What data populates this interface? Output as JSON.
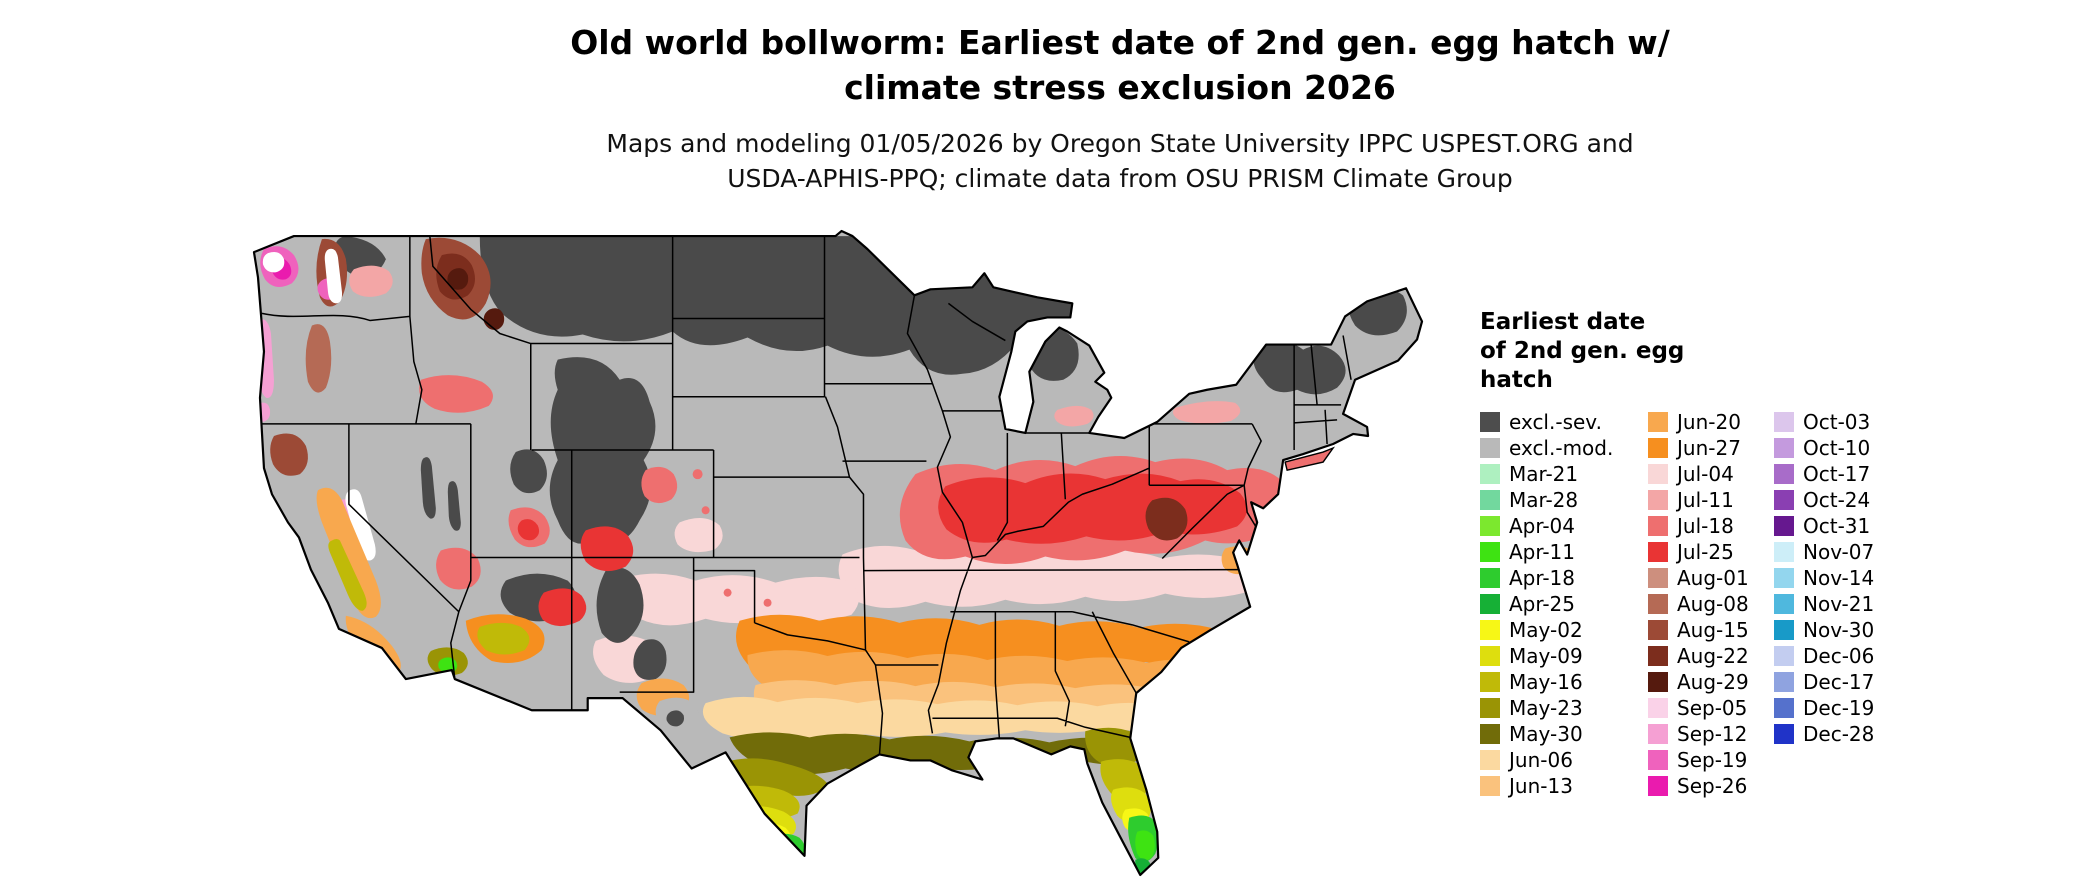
{
  "title": {
    "line1": "Old world bollworm: Earliest date of 2nd gen. egg hatch w/",
    "line2": "climate stress exclusion 2026"
  },
  "subtitle": {
    "line1": "Maps and modeling 01/05/2026 by Oregon State University IPPC USPEST.ORG and",
    "line2": "USDA-APHIS-PPQ; climate data from OSU PRISM Climate Group"
  },
  "legend": {
    "title_lines": [
      "Earliest date",
      "of 2nd gen. egg",
      "hatch"
    ],
    "columns": [
      {
        "items": [
          {
            "label": "excl.-sev.",
            "color": "#4d4d4d"
          },
          {
            "label": "excl.-mod.",
            "color": "#b9b9b9"
          },
          {
            "label": "Mar-21",
            "color": "#aef0c0"
          },
          {
            "label": "Mar-28",
            "color": "#72d89e"
          },
          {
            "label": "Apr-04",
            "color": "#7ce82e"
          },
          {
            "label": "Apr-11",
            "color": "#3ee312"
          },
          {
            "label": "Apr-18",
            "color": "#2ecc2e"
          },
          {
            "label": "Apr-25",
            "color": "#16b036"
          },
          {
            "label": "May-02",
            "color": "#f7f716"
          },
          {
            "label": "May-09",
            "color": "#dede0e"
          },
          {
            "label": "May-16",
            "color": "#c0ba08"
          },
          {
            "label": "May-23",
            "color": "#9a9405"
          },
          {
            "label": "May-30",
            "color": "#716c09"
          },
          {
            "label": "Jun-06",
            "color": "#fbd9a0"
          },
          {
            "label": "Jun-13",
            "color": "#fac27d"
          }
        ]
      },
      {
        "items": [
          {
            "label": "Jun-20",
            "color": "#f8a84e"
          },
          {
            "label": "Jun-27",
            "color": "#f68f1f"
          },
          {
            "label": "Jul-04",
            "color": "#f9d7d7"
          },
          {
            "label": "Jul-11",
            "color": "#f3a6a6"
          },
          {
            "label": "Jul-18",
            "color": "#ee6f6f"
          },
          {
            "label": "Jul-25",
            "color": "#e93434"
          },
          {
            "label": "Aug-01",
            "color": "#cd8f7e"
          },
          {
            "label": "Aug-08",
            "color": "#b56a55"
          },
          {
            "label": "Aug-15",
            "color": "#9c4a36"
          },
          {
            "label": "Aug-22",
            "color": "#7c2d1d"
          },
          {
            "label": "Aug-29",
            "color": "#551a0e"
          },
          {
            "label": "Sep-05",
            "color": "#fad2e8"
          },
          {
            "label": "Sep-12",
            "color": "#f5a0d3"
          },
          {
            "label": "Sep-19",
            "color": "#ef62bd"
          },
          {
            "label": "Sep-26",
            "color": "#ea1bae"
          }
        ]
      },
      {
        "items": [
          {
            "label": "Oct-03",
            "color": "#dcc6ec"
          },
          {
            "label": "Oct-10",
            "color": "#c49ade"
          },
          {
            "label": "Oct-17",
            "color": "#a86cc9"
          },
          {
            "label": "Oct-24",
            "color": "#8a3fb2"
          },
          {
            "label": "Oct-31",
            "color": "#66188f"
          },
          {
            "label": "Nov-07",
            "color": "#cdeef8"
          },
          {
            "label": "Nov-14",
            "color": "#93d6ee"
          },
          {
            "label": "Nov-21",
            "color": "#4fb8de"
          },
          {
            "label": "Nov-30",
            "color": "#189ac8"
          },
          {
            "label": "Dec-06",
            "color": "#c3cdf0"
          },
          {
            "label": "Dec-17",
            "color": "#8fa3e0"
          },
          {
            "label": "Dec-19",
            "color": "#5571cc"
          },
          {
            "label": "Dec-28",
            "color": "#2033c8"
          }
        ]
      }
    ]
  }
}
